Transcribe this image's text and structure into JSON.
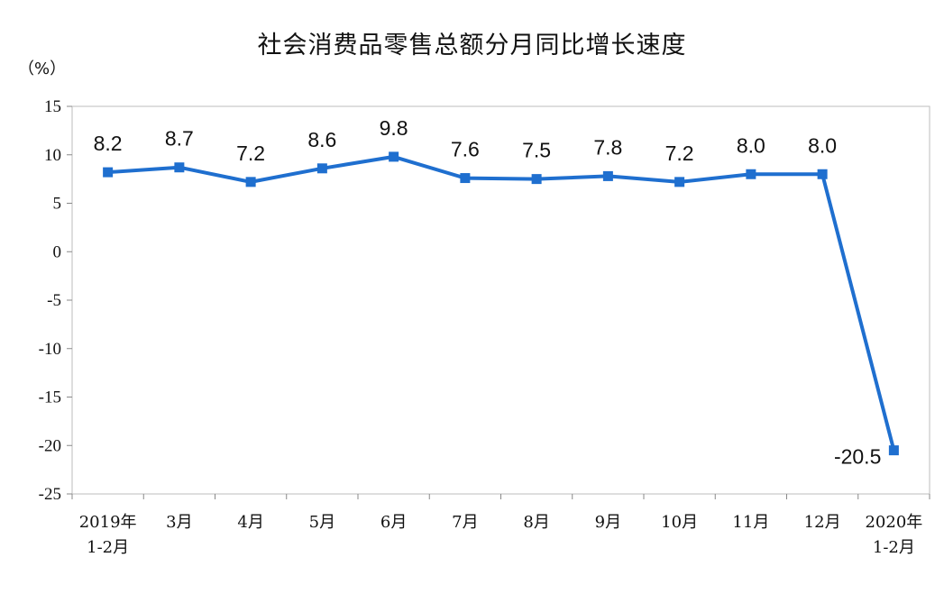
{
  "chart_data": {
    "type": "line",
    "title": "社会消费品零售总额分月同比增长速度",
    "unit_label": "（%）",
    "xlabel": "",
    "ylabel": "",
    "ylim": [
      -25,
      15
    ],
    "yticks": [
      15,
      10,
      5,
      0,
      -5,
      -10,
      -15,
      -20,
      -25
    ],
    "grid": false,
    "legend": "none",
    "line_color": "#1F6FCF",
    "categories": [
      [
        "2019年",
        "1-2月"
      ],
      [
        "3月"
      ],
      [
        "4月"
      ],
      [
        "5月"
      ],
      [
        "6月"
      ],
      [
        "7月"
      ],
      [
        "8月"
      ],
      [
        "9月"
      ],
      [
        "10月"
      ],
      [
        "11月"
      ],
      [
        "12月"
      ],
      [
        "2020年",
        "1-2月"
      ]
    ],
    "values": [
      8.2,
      8.7,
      7.2,
      8.6,
      9.8,
      7.6,
      7.5,
      7.8,
      7.2,
      8.0,
      8.0,
      -20.5
    ],
    "data_labels": [
      "8.2",
      "8.7",
      "7.2",
      "8.6",
      "9.8",
      "7.6",
      "7.5",
      "7.8",
      "7.2",
      "8.0",
      "8.0",
      "-20.5"
    ]
  }
}
